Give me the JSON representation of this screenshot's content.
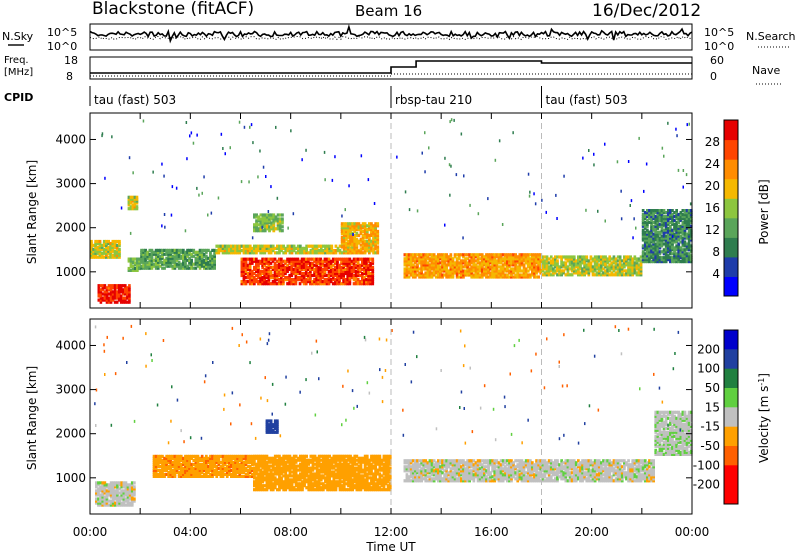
{
  "header": {
    "title": "Blackstone (fitACF)",
    "beam": "Beam 16",
    "date": "16/Dec/2012"
  },
  "top_panel": {
    "left_label": "N.Sky",
    "right_label": "N.Search",
    "left_ticks": [
      "10^5",
      "10^0"
    ],
    "right_ticks": [
      "10^5",
      "10^0"
    ]
  },
  "freq_panel": {
    "left_label_line1": "Freq.",
    "left_label_line2": "[MHz]",
    "left_ticks": [
      "18",
      "8"
    ],
    "right_label": "Nave",
    "right_ticks": [
      "60",
      "0"
    ]
  },
  "cpid": {
    "label": "CPID",
    "segments": [
      {
        "start_hour": 0,
        "name": "tau (fast) 503"
      },
      {
        "start_hour": 12,
        "name": "rbsp-tau 210"
      },
      {
        "start_hour": 18,
        "name": "tau (fast) 503"
      }
    ]
  },
  "colors": {
    "power": [
      "#0000ff",
      "#1e3caa",
      "#2f7d4f",
      "#5aa55a",
      "#8dc63f",
      "#f5b800",
      "#ff8c00",
      "#ff4500",
      "#e60000"
    ],
    "velocity": [
      "#ff0000",
      "#ff6000",
      "#ffa000",
      "#c0c0c0",
      "#c0c0c0",
      "#60d040",
      "#208040",
      "#2040a0",
      "#0000cc"
    ]
  },
  "chart_data": [
    {
      "type": "heatmap",
      "panel": "power",
      "ylabel": "Slant Range [km]",
      "xlabel": "Time UT",
      "xlim": [
        0,
        24
      ],
      "ylim": [
        180,
        4600
      ],
      "xticks": [
        "00:00",
        "04:00",
        "08:00",
        "12:00",
        "16:00",
        "20:00",
        "00:00"
      ],
      "yticks": [
        1000,
        2000,
        3000,
        4000
      ],
      "colorbar": {
        "label": "Power [dB]",
        "ticks": [
          4,
          8,
          12,
          16,
          20,
          24,
          28
        ],
        "range": [
          0,
          32
        ]
      },
      "regions": [
        {
          "t0": 0.3,
          "t1": 1.6,
          "r0": 280,
          "r1": 700,
          "level": 29
        },
        {
          "t0": 0.0,
          "t1": 1.2,
          "r0": 1300,
          "r1": 1700,
          "level": 18
        },
        {
          "t0": 1.5,
          "t1": 2.0,
          "r0": 1000,
          "r1": 1300,
          "level": 14
        },
        {
          "t0": 1.5,
          "t1": 1.9,
          "r0": 2400,
          "r1": 2700,
          "level": 18
        },
        {
          "t0": 2.0,
          "t1": 5.0,
          "r0": 1050,
          "r1": 1500,
          "level": 12
        },
        {
          "t0": 5.0,
          "t1": 10.5,
          "r0": 1400,
          "r1": 1600,
          "level": 18
        },
        {
          "t0": 6.0,
          "t1": 11.3,
          "r0": 700,
          "r1": 1300,
          "level": 28
        },
        {
          "t0": 10.0,
          "t1": 11.5,
          "r0": 1400,
          "r1": 2100,
          "level": 21
        },
        {
          "t0": 6.5,
          "t1": 7.7,
          "r0": 1900,
          "r1": 2300,
          "level": 15
        },
        {
          "t0": 12.5,
          "t1": 18.0,
          "r0": 850,
          "r1": 1400,
          "level": 22
        },
        {
          "t0": 18.0,
          "t1": 22.0,
          "r0": 900,
          "r1": 1350,
          "level": 17
        },
        {
          "t0": 22.0,
          "t1": 24.0,
          "r0": 1200,
          "r1": 2400,
          "level": 10
        }
      ]
    },
    {
      "type": "heatmap",
      "panel": "velocity",
      "ylabel": "Slant Range [km]",
      "xlabel": "Time UT",
      "xlim": [
        0,
        24
      ],
      "ylim": [
        180,
        4600
      ],
      "xticks": [
        "00:00",
        "04:00",
        "08:00",
        "12:00",
        "16:00",
        "20:00",
        "00:00"
      ],
      "yticks": [
        1000,
        2000,
        3000,
        4000
      ],
      "colorbar": {
        "label": "Velocity [m s^-1]",
        "ticks": [
          200,
          100,
          50,
          15,
          -15,
          -50,
          -100,
          -200
        ]
      },
      "regions": [
        {
          "t0": 0.2,
          "t1": 1.8,
          "r0": 350,
          "r1": 900,
          "level": 0
        },
        {
          "t0": 2.5,
          "t1": 6.5,
          "r0": 1000,
          "r1": 1500,
          "level": -60
        },
        {
          "t0": 6.5,
          "t1": 12.0,
          "r0": 700,
          "r1": 1500,
          "level": -40
        },
        {
          "t0": 7.0,
          "t1": 7.5,
          "r0": 2000,
          "r1": 2300,
          "level": 120
        },
        {
          "t0": 12.5,
          "t1": 18.0,
          "r0": 900,
          "r1": 1400,
          "level": 0
        },
        {
          "t0": 18.0,
          "t1": 22.5,
          "r0": 900,
          "r1": 1400,
          "level": 0
        },
        {
          "t0": 22.5,
          "t1": 24.0,
          "r0": 1500,
          "r1": 2500,
          "level": 5
        }
      ]
    }
  ]
}
